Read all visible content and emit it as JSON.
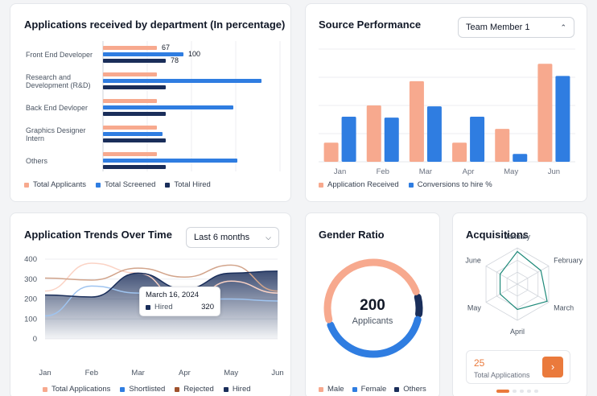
{
  "colors": {
    "applicants": "#f7a98e",
    "screened": "#2f7de1",
    "hired": "#1a2e5a",
    "rejected": "#a0522d",
    "accent": "#ea7a3c"
  },
  "dept_card": {
    "title": "Applications received by department (In percentage)",
    "departments": [
      {
        "label": "Front End Developer",
        "applicants": 67,
        "screened": 100,
        "hired": 78,
        "show_values": true
      },
      {
        "label": "Research and Development (R&D)",
        "applicants": 67,
        "screened": 197,
        "hired": 78,
        "show_values": false
      },
      {
        "label": "Back End Devloper",
        "applicants": 67,
        "screened": 162,
        "hired": 78,
        "show_values": false
      },
      {
        "label": "Graphics Designer Intern",
        "applicants": 67,
        "screened": 74,
        "hired": 78,
        "show_values": false
      },
      {
        "label": "Others",
        "applicants": 67,
        "screened": 167,
        "hired": 78,
        "show_values": false
      }
    ],
    "legend": [
      "Total Applicants",
      "Total Screened",
      "Total Hired"
    ]
  },
  "source_card": {
    "title": "Source Performance",
    "member_select": "Team Member 1",
    "months": [
      "Jan",
      "Feb",
      "Mar",
      "Apr",
      "May",
      "Jun"
    ],
    "received": [
      22,
      65,
      93,
      22,
      38,
      113
    ],
    "conversions": [
      52,
      51,
      64,
      52,
      9,
      99
    ],
    "ymax": 130,
    "legend": [
      "Application Received",
      "Conversions to hire %"
    ]
  },
  "trends_card": {
    "title": "Application Trends Over Time",
    "range_select": "Last 6 months",
    "y_ticks": [
      "400",
      "300",
      "200",
      "100",
      "0"
    ],
    "x_ticks": [
      "Jan",
      "Feb",
      "Mar",
      "Apr",
      "May",
      "Jun"
    ],
    "tooltip": {
      "date": "March 16, 2024",
      "label": "Hired",
      "value": "320"
    },
    "legend": [
      "Total Applications",
      "Shortlisted",
      "Rejected",
      "Hired"
    ],
    "series": {
      "total": [
        240,
        380,
        330,
        175,
        290,
        230
      ],
      "shortlisted": [
        115,
        265,
        230,
        200,
        200,
        190
      ],
      "rejected": [
        305,
        295,
        355,
        310,
        370,
        240
      ],
      "hired": [
        220,
        210,
        330,
        250,
        330,
        340
      ]
    }
  },
  "gender_card": {
    "title": "Gender Ratio",
    "total": "200",
    "caption": "Applicants",
    "shares": {
      "male": 0.52,
      "female": 0.4,
      "others": 0.06
    },
    "legend": [
      "Male",
      "Female",
      "Others"
    ]
  },
  "acq_card": {
    "title": "Acquisitions",
    "axes": [
      "January",
      "February",
      "March",
      "April",
      "May",
      "June"
    ],
    "values": [
      0.9,
      0.75,
      0.95,
      0.7,
      0.55,
      0.55
    ],
    "count": "25",
    "count_label": "Total Applications",
    "next_icon": "chevron-right-icon"
  }
}
